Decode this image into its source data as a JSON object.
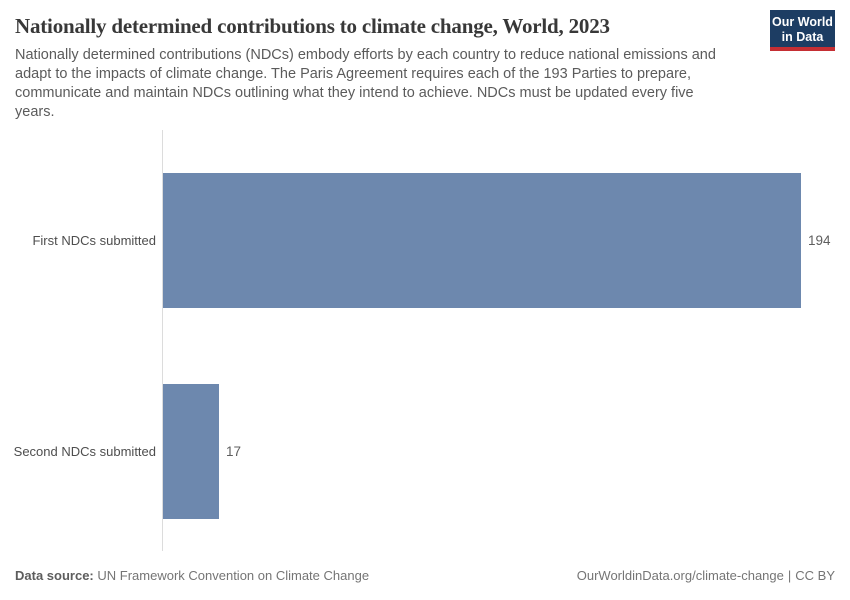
{
  "header": {
    "title": "Nationally determined contributions to climate change, World, 2023",
    "subtitle_lines": [
      "Nationally determined contributions (NDCs) embody efforts by each country to reduce national emissions and",
      "adapt to the impacts of climate change. The Paris Agreement requires each of the 193 Parties to prepare,",
      "communicate and maintain NDCs outlining what they intend to achieve. NDCs must be updated every five",
      "years."
    ]
  },
  "logo": {
    "line1": "Our World",
    "line2": "in Data"
  },
  "chart_data": {
    "type": "bar",
    "orientation": "horizontal",
    "title": "Nationally determined contributions to climate change, World, 2023",
    "categories": [
      "First NDCs submitted",
      "Second NDCs submitted"
    ],
    "values": [
      194,
      17
    ],
    "value_labels": [
      "194",
      "17"
    ],
    "xlim": [
      0,
      194
    ],
    "grid": false,
    "legend": "none",
    "bar_color": "#6d88ae"
  },
  "footer": {
    "datasource_label": "Data source:",
    "datasource_value": "UN Framework Convention on Climate Change",
    "url": "OurWorldinData.org/climate-change",
    "separator": "|",
    "license": "CC BY"
  },
  "colors": {
    "bar": "#6d88ae",
    "logo_background": "#1d3d63",
    "logo_stripe": "#c52e33",
    "axis_line": "#dcdcdc"
  }
}
